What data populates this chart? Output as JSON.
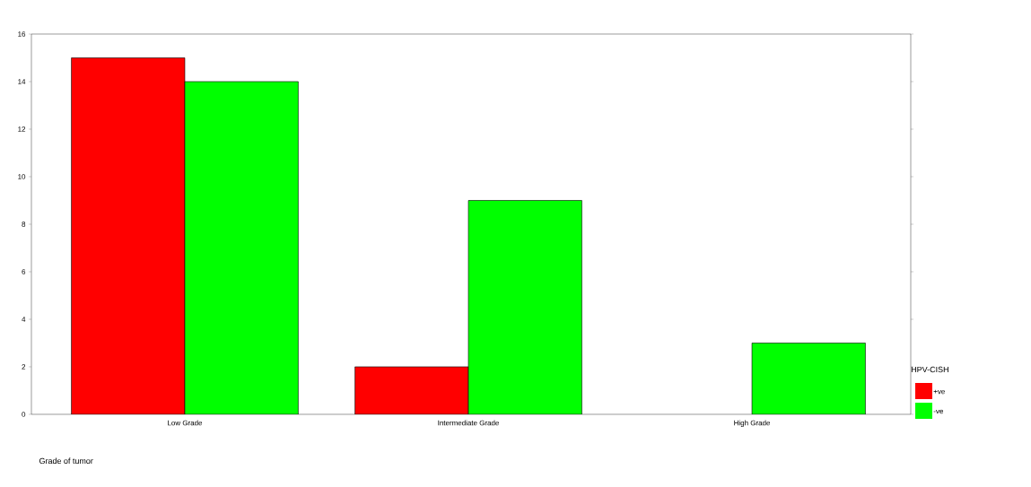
{
  "chart_data": {
    "type": "bar",
    "xlabel": "Grade of tumor",
    "legend_title": "HPV-CISH",
    "categories": [
      "Low Grade",
      "Intermediate Grade",
      "High Grade"
    ],
    "series": [
      {
        "name": "+ve",
        "color": "#ff0000",
        "values": [
          15,
          2,
          null
        ]
      },
      {
        "name": "-ve",
        "color": "#00ff00",
        "values": [
          14,
          9,
          3
        ]
      }
    ],
    "ylim": [
      0,
      16
    ],
    "yticks": [
      0,
      2,
      4,
      6,
      8,
      10,
      12,
      14,
      16
    ],
    "grid": false,
    "legend": "right"
  }
}
